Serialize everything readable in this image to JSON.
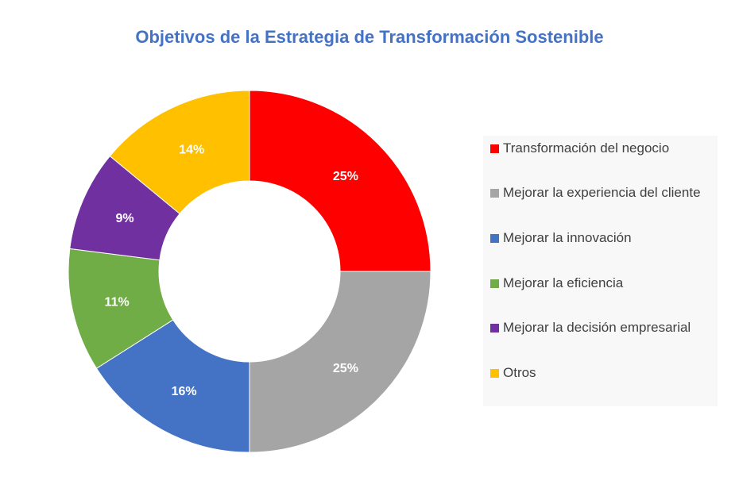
{
  "chart_data": {
    "type": "pie",
    "variant": "donut",
    "title": "Objetivos de la Estrategia de Transformación Sostenible",
    "legend_position": "right",
    "categories": [
      "Transformación del negocio",
      "Mejorar la experiencia del cliente",
      "Mejorar la innovación",
      "Mejorar la eficiencia",
      "Mejorar la decisión empresarial",
      "Otros"
    ],
    "values": [
      25,
      25,
      16,
      11,
      9,
      14
    ],
    "data_labels": [
      "25%",
      "25%",
      "16%",
      "11%",
      "9%",
      "14%"
    ],
    "colors": [
      "#ff0000",
      "#a5a5a5",
      "#4472c4",
      "#70ad47",
      "#7030a0",
      "#ffc000"
    ]
  }
}
